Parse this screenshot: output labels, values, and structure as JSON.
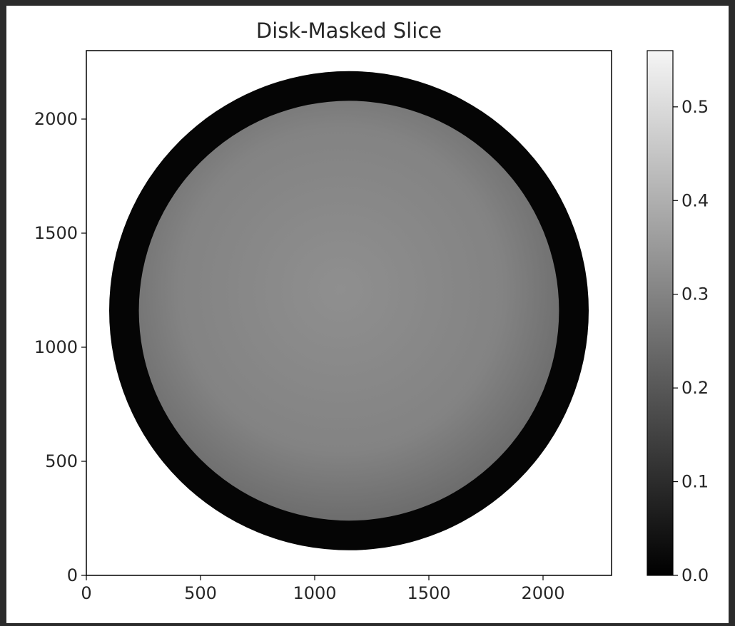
{
  "chart_data": {
    "type": "heatmap",
    "title": "Disk-Masked Slice",
    "xlabel": "",
    "ylabel": "",
    "colormap": "gray",
    "xlim": [
      0,
      2300
    ],
    "ylim": [
      0,
      2300
    ],
    "x_ticks": [
      0,
      500,
      1000,
      1500,
      2000
    ],
    "y_ticks": [
      0,
      500,
      1000,
      1500,
      2000
    ],
    "x_tick_labels": [
      "0",
      "500",
      "1000",
      "1500",
      "2000"
    ],
    "y_tick_labels": [
      "0",
      "500",
      "1000",
      "1500",
      "2000"
    ],
    "colorbar": {
      "range": [
        0.0,
        0.56
      ],
      "ticks": [
        0.0,
        0.1,
        0.2,
        0.3,
        0.4,
        0.5
      ],
      "tick_labels": [
        "0.0",
        "0.1",
        "0.2",
        "0.3",
        "0.4",
        "0.5"
      ]
    },
    "disk": {
      "center": [
        1150,
        1160
      ],
      "outer_radius": 1050,
      "inner_radius": 920,
      "ring_level": 0.02,
      "disk_level": 0.3,
      "background_level": 1.0
    },
    "grid": false,
    "legend": "none"
  }
}
